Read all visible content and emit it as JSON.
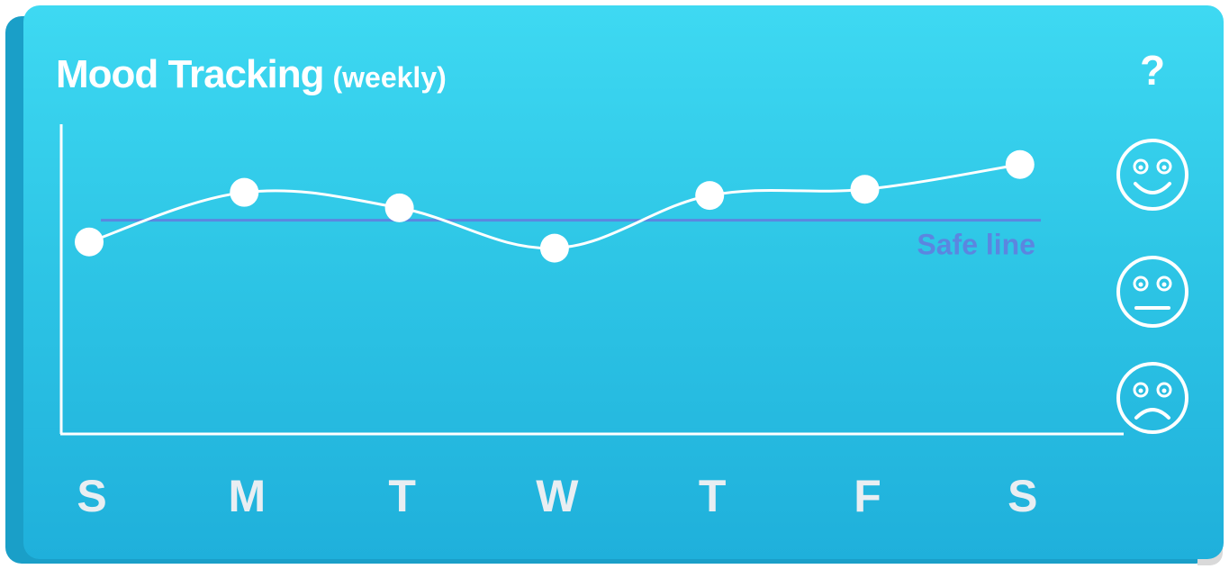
{
  "header": {
    "title": "Mood Tracking",
    "subtitle": "(weekly)",
    "help_label": "?"
  },
  "mood_scale": [
    {
      "icon": "happy-face-icon"
    },
    {
      "icon": "neutral-face-icon"
    },
    {
      "icon": "sad-face-icon"
    }
  ],
  "colors": {
    "card_top": "#3ed9f2",
    "card_bottom": "#1fb0db",
    "line": "#ffffff",
    "safe_line": "#5b86e0",
    "day_labels": "#e9eef2"
  },
  "chart_data": {
    "type": "line",
    "categories": [
      "S",
      "M",
      "T",
      "W",
      "T",
      "F",
      "S"
    ],
    "series": [
      {
        "values": [
          6.2,
          7.8,
          7.3,
          6.0,
          7.7,
          7.9,
          8.7
        ]
      }
    ],
    "ylim": [
      0,
      10
    ],
    "annotations": [
      {
        "label": "Safe line",
        "y": 6.9
      }
    ],
    "grid": false,
    "legend": "none"
  }
}
